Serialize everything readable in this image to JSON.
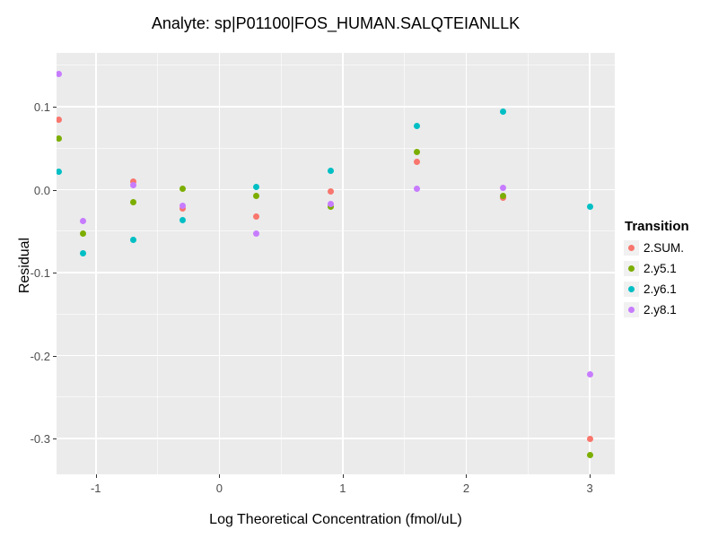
{
  "chart_data": {
    "type": "scatter",
    "title": "Analyte: sp|P01100|FOS_HUMAN.SALQTEIANLLK",
    "xlabel": "Log Theoretical Concentration (fmol/uL)",
    "ylabel": "Residual",
    "xlim": [
      -1.318,
      3.203
    ],
    "ylim": [
      -0.343,
      0.165
    ],
    "x_major_ticks": [
      -1,
      0,
      1,
      2,
      3
    ],
    "x_tick_labels": [
      "-1",
      "0",
      "1",
      "2",
      "3"
    ],
    "x_minor_ticks": [
      -0.5,
      0.5,
      1.5,
      2.5
    ],
    "y_major_ticks": [
      0.1,
      0.0,
      -0.1,
      -0.2,
      -0.3
    ],
    "y_tick_labels": [
      "0.1",
      "0.0",
      "-0.1",
      "-0.2",
      "-0.3"
    ],
    "y_minor_ticks": [
      0.15,
      0.05,
      -0.05,
      -0.15,
      -0.25
    ],
    "grid": true,
    "panel_bg": "#EBEBEB",
    "grid_color": "#FFFFFF",
    "legend_title": "Transition",
    "legend_position": "right",
    "series": [
      {
        "name": "2.SUM.",
        "color": "#F8766D",
        "points": [
          [
            -1.3,
            0.084
          ],
          [
            -0.7,
            0.01
          ],
          [
            -0.3,
            -0.023
          ],
          [
            0.3,
            -0.032
          ],
          [
            0.9,
            -0.002
          ],
          [
            1.6,
            0.034
          ],
          [
            2.3,
            -0.01
          ],
          [
            3.0,
            -0.3
          ]
        ]
      },
      {
        "name": "2.y5.1",
        "color": "#7CAE00",
        "points": [
          [
            -1.3,
            0.062
          ],
          [
            -1.1,
            -0.053
          ],
          [
            -0.7,
            -0.015
          ],
          [
            -0.3,
            0.001
          ],
          [
            0.3,
            -0.007
          ],
          [
            0.9,
            -0.02
          ],
          [
            1.6,
            0.046
          ],
          [
            2.3,
            -0.007
          ],
          [
            3.0,
            -0.32
          ]
        ]
      },
      {
        "name": "2.y6.1",
        "color": "#00BFC4",
        "points": [
          [
            -1.3,
            0.022
          ],
          [
            -1.1,
            -0.077
          ],
          [
            -0.7,
            -0.06
          ],
          [
            -0.3,
            -0.037
          ],
          [
            0.3,
            0.003
          ],
          [
            0.9,
            0.023
          ],
          [
            1.6,
            0.077
          ],
          [
            2.3,
            0.094
          ],
          [
            3.0,
            -0.02
          ]
        ]
      },
      {
        "name": "2.y8.1",
        "color": "#C77CFF",
        "points": [
          [
            -1.3,
            0.14
          ],
          [
            -1.1,
            -0.038
          ],
          [
            -0.7,
            0.006
          ],
          [
            -0.3,
            -0.019
          ],
          [
            0.3,
            -0.053
          ],
          [
            0.9,
            -0.017
          ],
          [
            1.6,
            0.001
          ],
          [
            2.3,
            0.002
          ],
          [
            3.0,
            -0.223
          ]
        ]
      }
    ]
  }
}
